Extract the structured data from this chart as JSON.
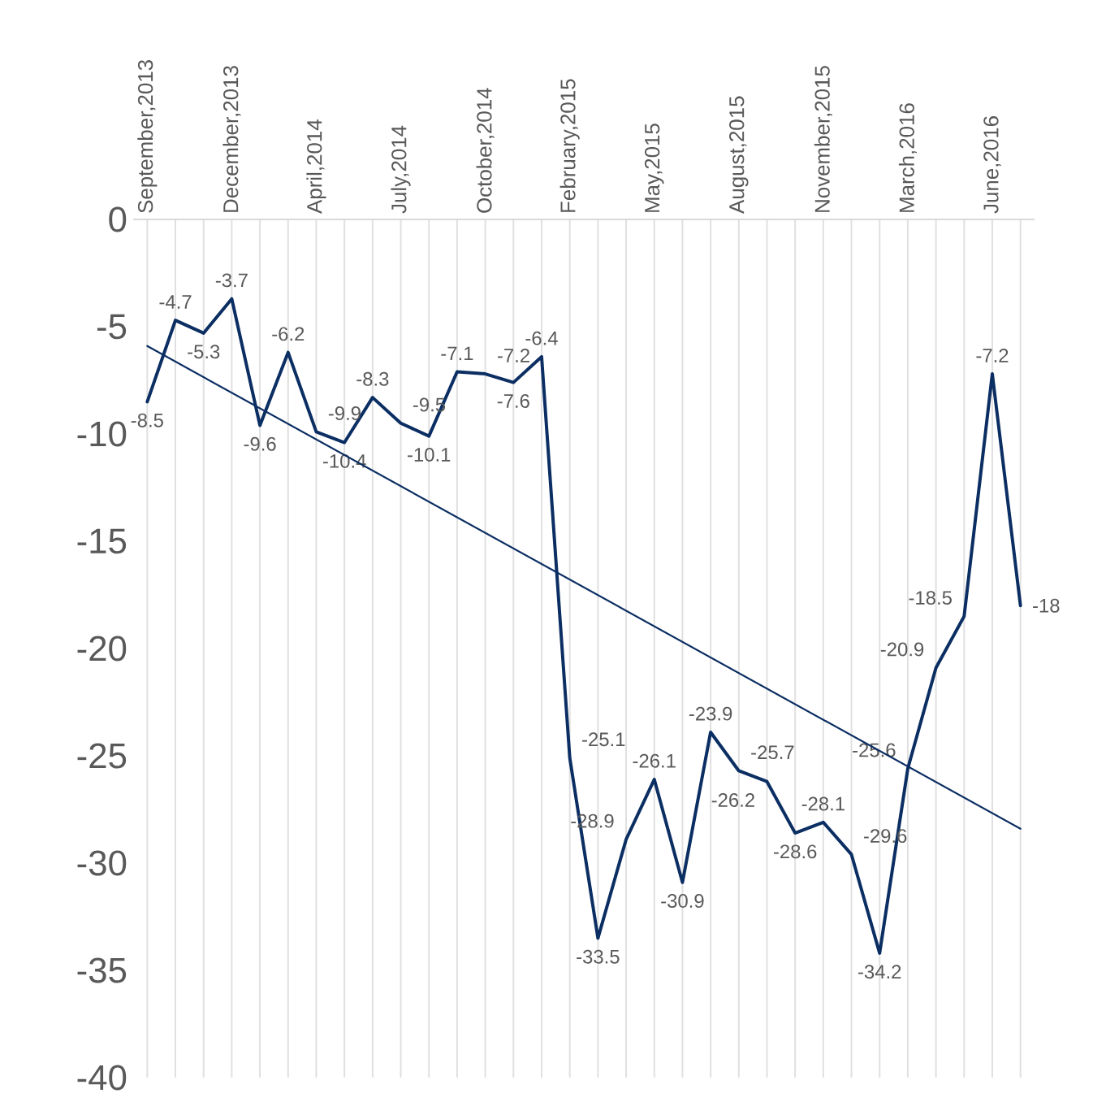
{
  "chart_data": {
    "type": "line",
    "categories": [
      "September,2013",
      null,
      null,
      "December,2013",
      null,
      null,
      "April,2014",
      null,
      null,
      "July,2014",
      null,
      null,
      "October,2014",
      null,
      null,
      "February,2015",
      null,
      null,
      "May,2015",
      null,
      null,
      "August,2015",
      null,
      null,
      "November,2015",
      null,
      null,
      "March,2016",
      null,
      null,
      "June,2016",
      null
    ],
    "series": [
      {
        "color": "#0b2e63",
        "data_labels": true,
        "values": [
          -8.5,
          -4.7,
          -5.3,
          -3.7,
          -9.6,
          -6.2,
          -9.9,
          -10.4,
          -8.3,
          -9.5,
          -10.1,
          -7.1,
          -7.2,
          -7.6,
          -6.4,
          -25.1,
          -33.5,
          -28.9,
          -26.1,
          -30.9,
          -23.9,
          -25.7,
          -26.2,
          -28.6,
          -28.1,
          -29.6,
          -34.2,
          -25.6,
          -20.9,
          -18.5,
          -7.2,
          -18
        ]
      },
      {
        "color": "#0b2e63",
        "values": [
          -5.9,
          null,
          null,
          null,
          null,
          null,
          null,
          null,
          null,
          null,
          null,
          null,
          null,
          null,
          null,
          null,
          null,
          null,
          null,
          null,
          null,
          null,
          null,
          null,
          null,
          null,
          null,
          null,
          null,
          null,
          null,
          -28.4
        ]
      }
    ],
    "ylim": [
      -40,
      0
    ],
    "yticks": [
      0,
      -5,
      -10,
      -15,
      -20,
      -25,
      -30,
      -35,
      -40
    ],
    "grid": "x"
  }
}
